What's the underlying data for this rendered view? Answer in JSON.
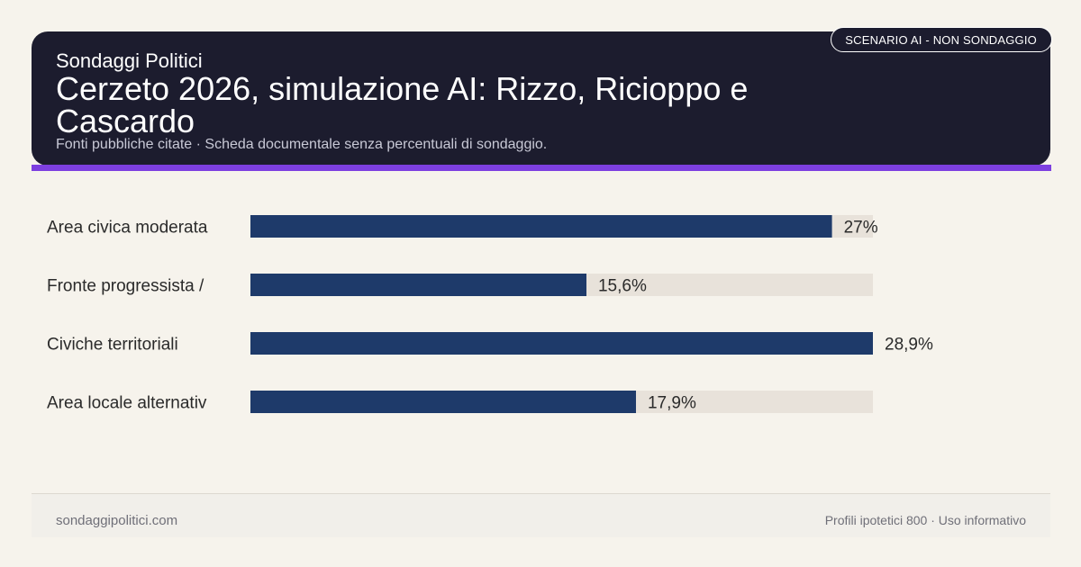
{
  "header": {
    "brand": "Sondaggi Politici",
    "title": "Cerzeto 2026, simulazione AI: Rizzo, Ricioppo e Cascardo",
    "subtitle": "Fonti pubbliche citate · Scheda documentale senza percentuali di sondaggio.",
    "badge": "SCENARIO AI - NON SONDAGGIO"
  },
  "chart_data": {
    "type": "bar",
    "orientation": "horizontal",
    "categories": [
      "Area civica moderata",
      "Fronte progressista /",
      "Civiche territoriali",
      "Area locale alternativ"
    ],
    "values": [
      27,
      15.6,
      28.9,
      17.9
    ],
    "value_labels": [
      "27%",
      "15,6%",
      "28,9%",
      "17,9%"
    ],
    "xlim": [
      0,
      28.9
    ],
    "colors": {
      "bar": "#1e3a6a",
      "track": "#e8e2da",
      "label": "#2a2a2a"
    }
  },
  "footer": {
    "site": "sondaggipolitici.com",
    "note": "Profili ipotetici 800 · Uso informativo"
  }
}
